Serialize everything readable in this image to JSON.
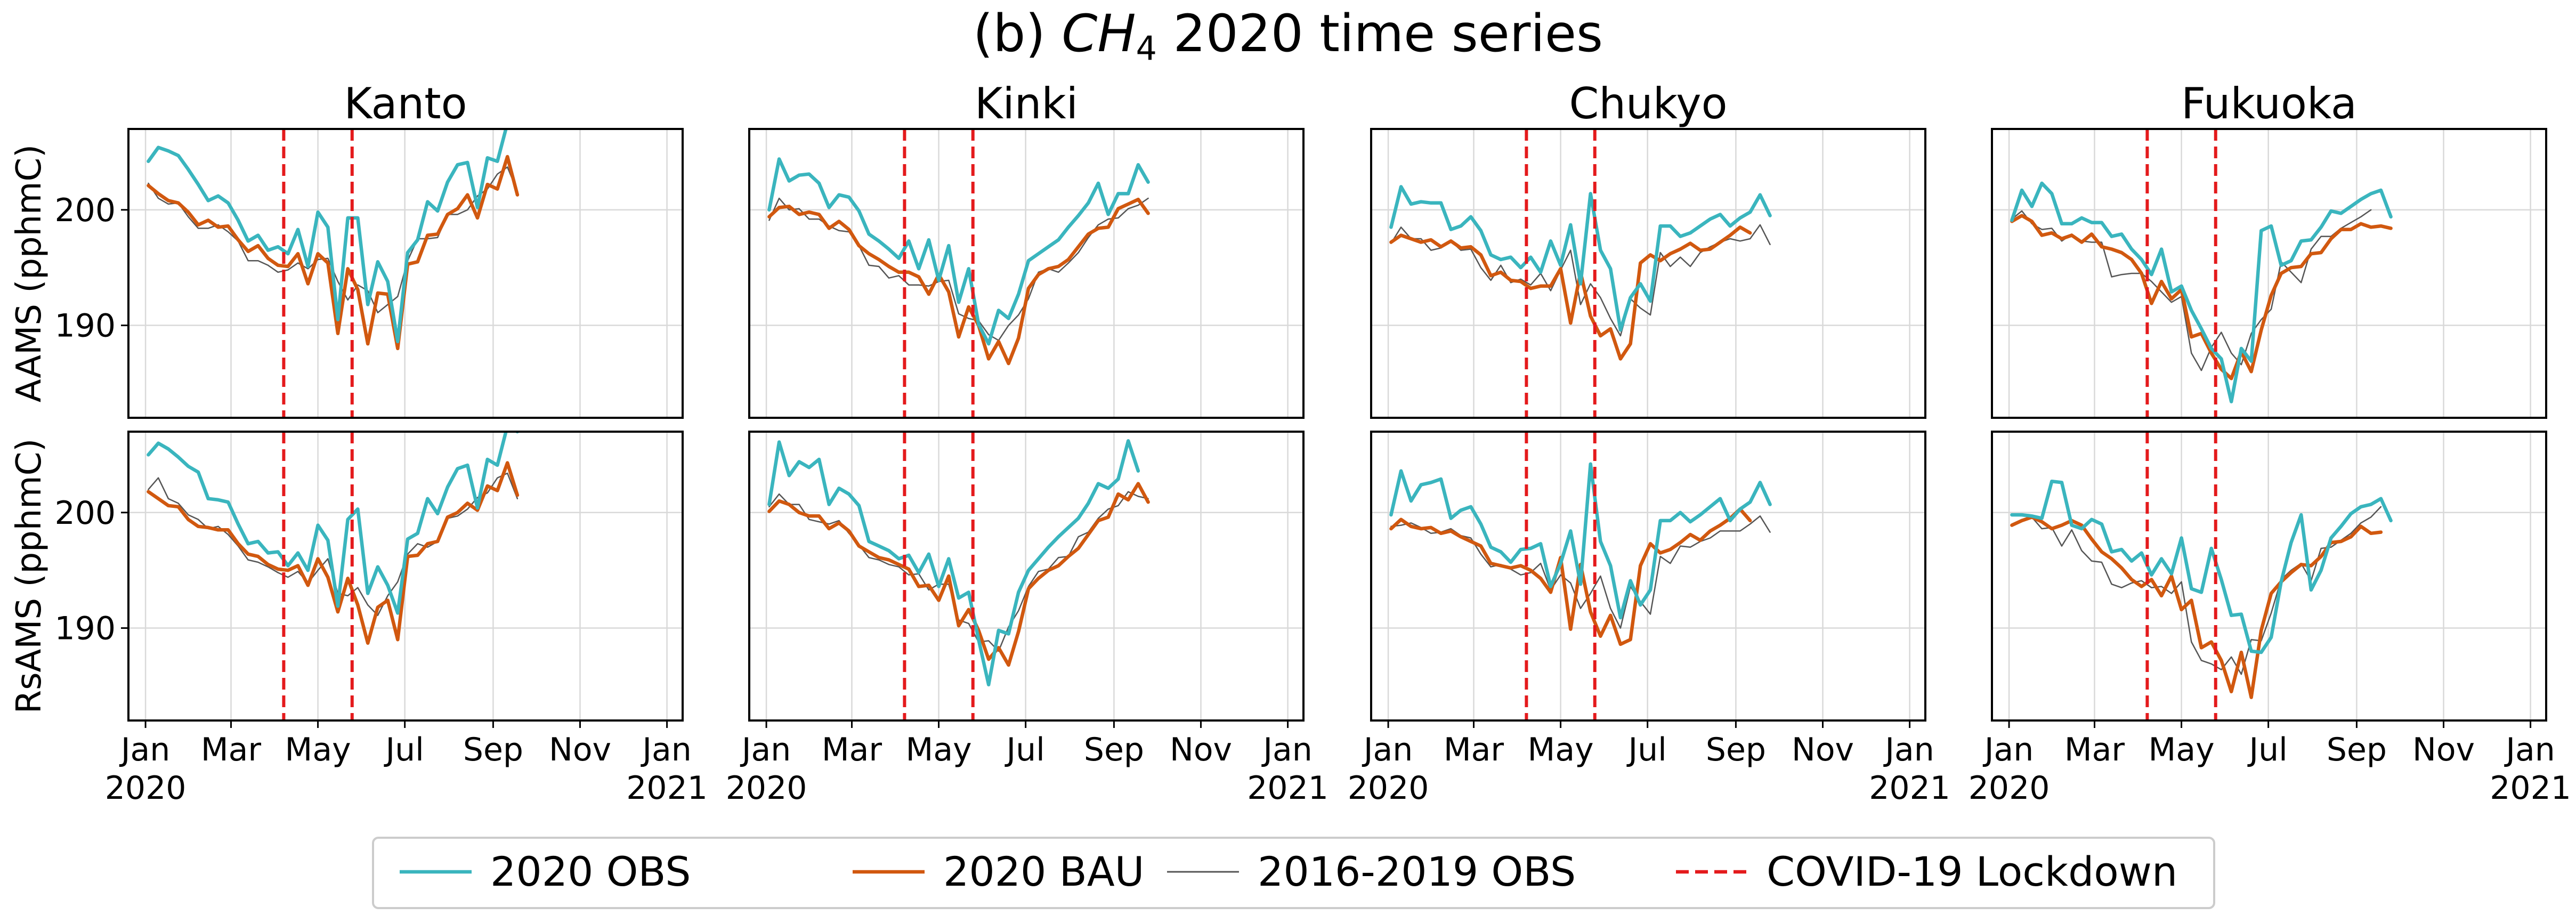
{
  "figure": {
    "title_prefix": "(b) ",
    "title_species": "CH",
    "title_subscript": "4",
    "title_suffix": " 2020 time series"
  },
  "legend": {
    "placement": "bottom-center",
    "entries": [
      {
        "key": "obs2020",
        "label": "2020 OBS",
        "color": "#3ab5be",
        "style": "solid"
      },
      {
        "key": "bau2020",
        "label": "2020 BAU",
        "color": "#d1580f",
        "style": "solid"
      },
      {
        "key": "obs1619",
        "label": "2016-2019 OBS",
        "color": "#555555",
        "style": "solid"
      },
      {
        "key": "lockdown",
        "label": "COVID-19 Lockdown",
        "color": "#e41a1c",
        "style": "dashed"
      }
    ]
  },
  "chart_data": {
    "type": "line",
    "columns": [
      "Kanto",
      "Kinki",
      "Chukyo",
      "Fukuoka"
    ],
    "rows": [
      {
        "ylabel": "AAMS (pphmC)"
      },
      {
        "ylabel": "RsAMS (pphmC)"
      }
    ],
    "xlim": [
      "2019-12-20",
      "2021-01-12"
    ],
    "ylim": [
      182,
      207
    ],
    "y_ticks": [
      190,
      200
    ],
    "x_ticks": [
      {
        "date": "2020-01-01",
        "label": "Jan",
        "label2": "2020"
      },
      {
        "date": "2020-03-01",
        "label": "Mar",
        "label2": ""
      },
      {
        "date": "2020-05-01",
        "label": "May",
        "label2": ""
      },
      {
        "date": "2020-07-01",
        "label": "Jul",
        "label2": ""
      },
      {
        "date": "2020-09-01",
        "label": "Sep",
        "label2": ""
      },
      {
        "date": "2020-11-01",
        "label": "Nov",
        "label2": ""
      },
      {
        "date": "2021-01-01",
        "label": "Jan",
        "label2": "2021"
      }
    ],
    "grid": true,
    "x_start": "2020-01-03",
    "x_step_days": 7,
    "lockdown": [
      "2020-04-07",
      "2020-05-25"
    ],
    "panels": [
      {
        "region": "Kanto",
        "row": "AAMS",
        "obs2020": [
          204.2,
          205.4,
          205.1,
          204.7,
          203.5,
          202.2,
          200.8,
          201.2,
          200.6,
          199.1,
          197.3,
          197.8,
          196.5,
          196.8,
          196.2,
          198.3,
          195.1,
          199.8,
          198.5,
          190.5,
          199.3,
          199.3,
          191.8,
          195.5,
          193.8,
          188.6,
          196.3,
          197.4,
          200.7,
          199.9,
          202.4,
          203.9,
          204.1,
          200.2,
          204.5,
          204.2,
          207.5
        ],
        "bau2020": [
          202.1,
          201.4,
          200.8,
          200.6,
          199.8,
          198.7,
          199.1,
          198.5,
          198.6,
          197.4,
          196.4,
          196.9,
          195.8,
          195.2,
          195.1,
          196.2,
          193.6,
          196.2,
          195.4,
          189.3,
          194.9,
          193.1,
          188.4,
          192.8,
          192.7,
          188.0,
          195.3,
          195.5,
          197.8,
          197.9,
          199.6,
          200.1,
          201.3,
          199.3,
          202.2,
          201.8,
          204.6,
          201.3
        ],
        "obs1619": [
          202.3,
          201.0,
          200.5,
          200.6,
          199.4,
          198.4,
          198.4,
          198.7,
          198.1,
          197.3,
          195.6,
          195.6,
          195.2,
          194.6,
          194.8,
          195.4,
          194.9,
          195.7,
          195.8,
          193.8,
          192.2,
          193.5,
          193.0,
          191.1,
          191.8,
          192.5,
          195.6,
          197.5,
          197.5,
          197.6,
          199.6,
          199.6,
          200.0,
          201.2,
          201.8,
          203.1,
          203.7,
          201.6
        ]
      },
      {
        "region": "Kinki",
        "row": "AAMS",
        "obs2020": [
          200.0,
          204.4,
          202.5,
          203.0,
          203.1,
          202.3,
          200.2,
          201.3,
          201.1,
          199.9,
          197.9,
          197.3,
          196.6,
          195.8,
          197.3,
          194.9,
          197.4,
          193.9,
          196.9,
          192.0,
          194.9,
          190.1,
          188.4,
          191.3,
          190.6,
          192.7,
          195.6,
          196.2,
          196.8,
          197.4,
          198.5,
          199.5,
          200.6,
          202.3,
          199.6,
          201.4,
          201.4,
          203.9,
          202.4
        ],
        "bau2020": [
          199.4,
          200.2,
          200.3,
          199.6,
          199.8,
          199.6,
          198.4,
          199.0,
          198.3,
          196.9,
          196.2,
          195.7,
          195.1,
          194.6,
          194.6,
          194.2,
          192.7,
          194.4,
          192.9,
          189.0,
          191.6,
          190.0,
          187.1,
          188.6,
          186.7,
          188.9,
          193.2,
          194.4,
          194.9,
          195.1,
          195.7,
          196.8,
          197.9,
          198.4,
          198.5,
          200.1,
          200.5,
          200.9,
          199.7
        ],
        "obs1619": [
          199.1,
          201.0,
          200.0,
          200.1,
          199.2,
          199.2,
          198.6,
          198.2,
          198.1,
          196.9,
          195.2,
          195.1,
          194.1,
          194.3,
          193.5,
          193.5,
          193.4,
          193.8,
          193.9,
          191.0,
          190.6,
          190.4,
          189.2,
          188.7,
          190.0,
          190.9,
          192.3,
          194.6,
          194.9,
          194.6,
          195.4,
          196.3,
          197.6,
          198.7,
          199.2,
          199.3,
          200.1,
          200.4,
          201.0
        ]
      },
      {
        "region": "Chukyo",
        "row": "AAMS",
        "obs2020": [
          198.5,
          202.0,
          200.5,
          200.7,
          200.6,
          200.6,
          198.3,
          198.6,
          199.4,
          198.2,
          196.1,
          195.7,
          195.9,
          195.0,
          195.9,
          194.6,
          197.3,
          195.2,
          198.7,
          193.6,
          201.4,
          196.5,
          194.9,
          189.6,
          192.4,
          193.6,
          192.1,
          198.6,
          198.6,
          197.7,
          198.0,
          198.6,
          199.2,
          199.6,
          198.6,
          199.3,
          199.8,
          201.3,
          199.5
        ],
        "bau2020": [
          197.2,
          197.8,
          197.5,
          197.2,
          197.4,
          196.8,
          197.3,
          196.7,
          196.8,
          196.1,
          194.3,
          194.6,
          193.9,
          193.8,
          193.2,
          193.4,
          193.4,
          194.9,
          190.2,
          194.6,
          190.8,
          189.1,
          189.7,
          187.1,
          188.4,
          195.4,
          196.1,
          195.6,
          196.2,
          196.6,
          197.1,
          196.5,
          196.6,
          197.2,
          197.8,
          198.5,
          198.0
        ],
        "obs1619": [
          197.1,
          198.5,
          197.5,
          197.5,
          196.5,
          196.7,
          197.3,
          196.5,
          196.6,
          195.0,
          193.9,
          195.2,
          193.7,
          194.0,
          193.5,
          194.5,
          193.0,
          194.8,
          196.5,
          191.8,
          193.6,
          192.4,
          190.6,
          189.1,
          192.3,
          191.5,
          190.9,
          196.3,
          195.1,
          195.9,
          195.1,
          196.3,
          196.8,
          197.2,
          197.5,
          197.3,
          197.5,
          198.7,
          197.0
        ]
      },
      {
        "region": "Fukuoka",
        "row": "AAMS",
        "obs2020": [
          199.1,
          201.7,
          200.3,
          202.3,
          201.4,
          198.8,
          198.8,
          199.3,
          198.9,
          198.9,
          197.7,
          197.9,
          196.6,
          195.7,
          194.4,
          196.6,
          192.9,
          193.4,
          191.3,
          189.7,
          188.0,
          187.1,
          183.4,
          188.0,
          186.9,
          198.2,
          198.6,
          195.2,
          195.6,
          197.3,
          197.4,
          198.5,
          199.9,
          199.7,
          200.3,
          200.9,
          201.4,
          201.7,
          199.4
        ],
        "bau2020": [
          199.0,
          199.5,
          199.0,
          197.8,
          198.0,
          197.5,
          197.8,
          197.2,
          197.9,
          196.8,
          196.6,
          196.3,
          195.7,
          194.5,
          191.9,
          193.8,
          192.3,
          193.1,
          189.0,
          189.3,
          187.6,
          186.2,
          185.4,
          187.7,
          186.0,
          189.6,
          192.6,
          194.5,
          195.0,
          195.1,
          196.2,
          196.3,
          197.5,
          198.3,
          198.3,
          198.8,
          198.5,
          198.6,
          198.4
        ],
        "obs1619": [
          199.2,
          199.9,
          198.8,
          198.3,
          198.4,
          197.3,
          197.9,
          197.3,
          197.2,
          197.2,
          194.2,
          194.4,
          194.5,
          194.5,
          193.8,
          192.9,
          192.0,
          192.5,
          187.6,
          186.1,
          188.1,
          189.4,
          187.6,
          186.6,
          189.3,
          190.5,
          191.4,
          195.5,
          194.6,
          193.7,
          196.6,
          197.7,
          197.7,
          198.4,
          198.9,
          199.4,
          200.0
        ]
      },
      {
        "region": "Kanto",
        "row": "RsAMS",
        "obs2020": [
          205.0,
          206.0,
          205.5,
          204.8,
          204.0,
          203.5,
          201.2,
          201.1,
          200.9,
          199.0,
          197.3,
          197.5,
          196.5,
          196.6,
          195.4,
          196.5,
          195.0,
          198.9,
          197.6,
          191.9,
          199.4,
          200.3,
          193.0,
          195.3,
          193.7,
          191.3,
          197.7,
          198.2,
          201.2,
          199.9,
          202.2,
          203.8,
          204.1,
          200.4,
          204.6,
          204.1,
          207.5,
          207.0
        ],
        "bau2020": [
          201.8,
          201.2,
          200.6,
          200.5,
          199.4,
          198.8,
          198.7,
          198.5,
          198.5,
          197.3,
          196.4,
          196.2,
          195.5,
          195.1,
          195.0,
          195.4,
          193.7,
          196.0,
          194.4,
          191.4,
          194.3,
          192.0,
          188.7,
          191.8,
          192.4,
          189.0,
          196.2,
          196.3,
          197.3,
          197.5,
          199.6,
          200.0,
          200.8,
          200.2,
          202.3,
          201.9,
          204.3,
          201.5
        ],
        "obs1619": [
          202.0,
          203.0,
          201.2,
          200.8,
          199.8,
          199.4,
          198.6,
          198.8,
          198.1,
          197.1,
          195.9,
          195.7,
          195.3,
          194.8,
          194.4,
          194.9,
          193.9,
          195.0,
          196.0,
          193.0,
          192.8,
          193.5,
          192.0,
          191.1,
          192.8,
          194.0,
          196.4,
          197.3,
          197.0,
          197.5,
          199.5,
          199.7,
          200.3,
          201.3,
          201.7,
          203.0,
          203.4,
          201.2
        ]
      },
      {
        "region": "Kinki",
        "row": "RsAMS",
        "obs2020": [
          200.7,
          206.1,
          203.2,
          204.4,
          203.9,
          204.6,
          200.7,
          202.1,
          201.6,
          200.6,
          197.5,
          197.1,
          196.7,
          196.0,
          196.3,
          194.8,
          196.4,
          193.6,
          196.0,
          192.6,
          193.1,
          189.0,
          185.1,
          189.8,
          189.5,
          193.1,
          195.0,
          196.0,
          197.0,
          197.9,
          198.7,
          199.5,
          200.8,
          202.5,
          202.1,
          202.9,
          206.2,
          203.6
        ],
        "bau2020": [
          200.1,
          201.0,
          200.7,
          200.0,
          199.7,
          199.7,
          198.6,
          199.1,
          198.4,
          197.1,
          196.6,
          196.1,
          195.9,
          195.5,
          195.1,
          193.6,
          193.7,
          192.4,
          194.5,
          190.2,
          191.6,
          189.8,
          187.3,
          188.3,
          186.8,
          189.7,
          193.4,
          194.3,
          195.0,
          195.4,
          196.2,
          196.9,
          198.1,
          199.3,
          199.6,
          201.6,
          201.1,
          202.5,
          200.9
        ],
        "obs1619": [
          200.5,
          201.6,
          200.7,
          200.7,
          199.4,
          199.2,
          199.0,
          199.3,
          198.2,
          197.2,
          196.1,
          195.9,
          195.5,
          195.3,
          194.6,
          194.7,
          193.3,
          193.8,
          193.8,
          190.7,
          190.4,
          188.8,
          188.9,
          188.0,
          190.1,
          191.5,
          193.6,
          194.9,
          195.1,
          196.1,
          196.2,
          197.9,
          198.3,
          199.5,
          200.3,
          200.6,
          201.8,
          201.4,
          201.2
        ]
      },
      {
        "region": "Chukyo",
        "row": "RsAMS",
        "obs2020": [
          199.8,
          203.6,
          201.0,
          202.4,
          202.6,
          202.9,
          199.5,
          200.2,
          200.5,
          199.0,
          197.0,
          196.6,
          195.7,
          196.8,
          196.9,
          197.3,
          193.6,
          195.6,
          198.4,
          193.8,
          204.2,
          197.5,
          195.4,
          190.9,
          194.1,
          192.0,
          193.3,
          199.3,
          199.3,
          200.0,
          199.2,
          199.8,
          200.5,
          201.2,
          199.3,
          200.3,
          200.9,
          202.6,
          200.7
        ],
        "bau2020": [
          198.6,
          199.4,
          198.8,
          198.6,
          198.7,
          198.2,
          198.4,
          197.9,
          197.5,
          197.1,
          195.6,
          195.4,
          195.2,
          195.4,
          195.0,
          194.3,
          193.1,
          196.1,
          189.9,
          195.5,
          191.4,
          189.3,
          191.1,
          188.6,
          189.0,
          195.4,
          197.3,
          196.5,
          196.8,
          197.4,
          198.1,
          197.6,
          198.4,
          198.9,
          199.5,
          200.3,
          199.3
        ],
        "obs1619": [
          198.8,
          198.9,
          199.1,
          198.7,
          198.2,
          198.3,
          198.6,
          198.0,
          197.8,
          196.4,
          195.3,
          195.5,
          195.1,
          194.6,
          194.8,
          195.6,
          193.3,
          194.6,
          193.9,
          191.7,
          193.0,
          194.5,
          191.7,
          190.0,
          193.6,
          192.3,
          191.2,
          196.2,
          195.6,
          197.1,
          197.0,
          197.5,
          197.8,
          198.4,
          198.4,
          198.4,
          199.0,
          199.7,
          198.3
        ]
      },
      {
        "region": "Fukuoka",
        "row": "RsAMS",
        "obs2020": [
          199.8,
          199.8,
          199.7,
          199.5,
          202.7,
          202.6,
          198.9,
          198.6,
          199.4,
          199.0,
          196.6,
          196.8,
          195.8,
          196.5,
          194.6,
          196.0,
          194.7,
          197.8,
          193.4,
          193.1,
          196.9,
          194.2,
          191.1,
          191.2,
          188.0,
          187.9,
          189.2,
          194.0,
          197.4,
          199.8,
          193.3,
          195.0,
          197.8,
          198.8,
          199.9,
          200.5,
          200.7,
          201.2,
          199.3
        ],
        "bau2020": [
          198.9,
          199.3,
          199.6,
          199.2,
          198.6,
          198.9,
          199.3,
          198.9,
          197.7,
          196.6,
          196.0,
          195.2,
          194.2,
          193.6,
          194.2,
          192.8,
          194.5,
          191.6,
          192.4,
          188.3,
          188.8,
          187.2,
          184.5,
          187.9,
          184.0,
          189.8,
          193.0,
          194.0,
          194.8,
          195.5,
          195.4,
          196.2,
          197.4,
          197.5,
          197.9,
          198.8,
          198.2,
          198.3
        ],
        "obs1619": [
          199.0,
          199.4,
          199.6,
          198.6,
          198.7,
          197.1,
          198.5,
          196.7,
          195.8,
          195.7,
          193.8,
          193.5,
          193.9,
          194.1,
          193.5,
          193.6,
          193.0,
          194.0,
          188.8,
          187.2,
          186.9,
          186.4,
          187.5,
          186.0,
          189.0,
          188.9,
          191.3,
          194.2,
          195.0,
          195.6,
          194.1,
          196.9,
          197.0,
          197.6,
          198.2,
          199.1,
          199.6,
          200.5
        ]
      }
    ]
  }
}
